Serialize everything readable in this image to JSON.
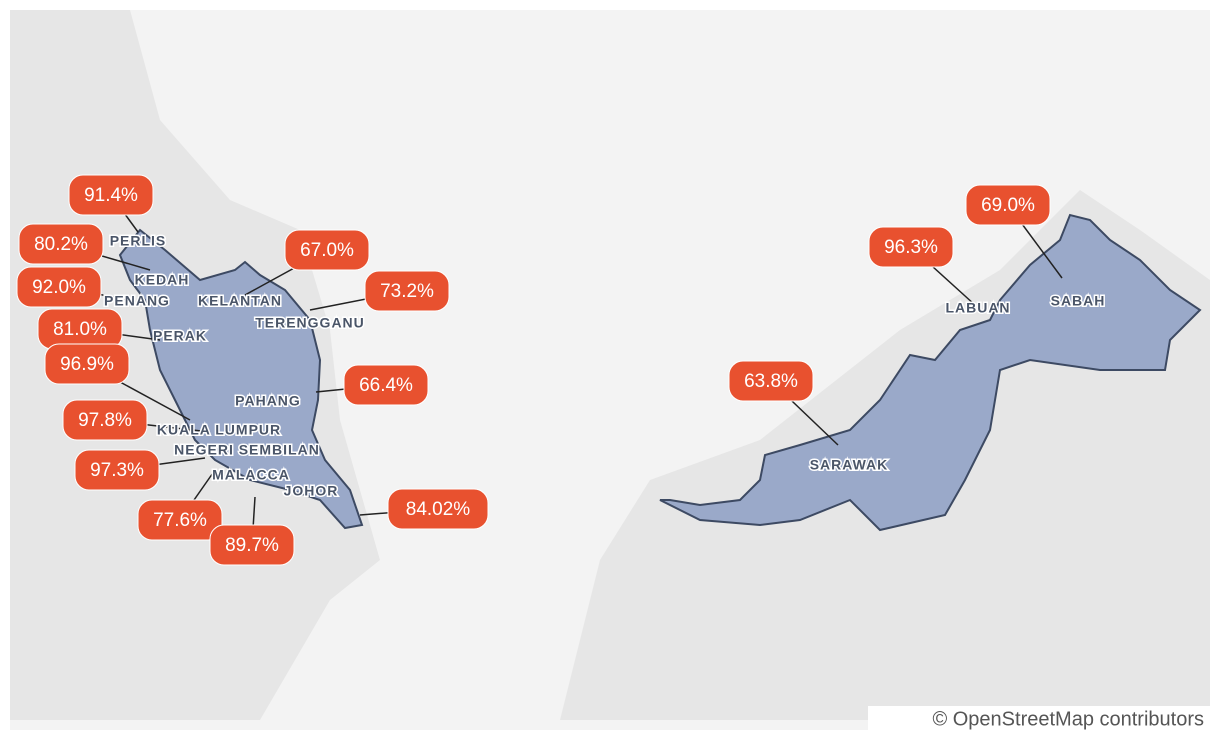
{
  "regions": [
    {
      "name": "PERLIS",
      "value": "91.4%"
    },
    {
      "name": "KEDAH",
      "value": "80.2%"
    },
    {
      "name": "PENANG",
      "value": "92.0%"
    },
    {
      "name": "PERAK",
      "value": "81.0%"
    },
    {
      "value": "96.9%"
    },
    {
      "name": "KUALA LUMPUR",
      "value": "97.8%"
    },
    {
      "name": "NEGERI SEMBILAN",
      "value": "97.3%"
    },
    {
      "name": "MALACCA",
      "value": "77.6%"
    },
    {
      "value": "89.7%"
    },
    {
      "name": "KELANTAN",
      "value": "67.0%"
    },
    {
      "name": "TERENGGANU",
      "value": "73.2%"
    },
    {
      "name": "PAHANG",
      "value": "66.4%"
    },
    {
      "name": "JOHOR",
      "value": "84.02%"
    },
    {
      "name": "SARAWAK",
      "value": "63.8%"
    },
    {
      "name": "LABUAN",
      "value": "96.3%"
    },
    {
      "name": "SABAH",
      "value": "69.0%"
    }
  ],
  "attribution": "© OpenStreetMap contributors"
}
